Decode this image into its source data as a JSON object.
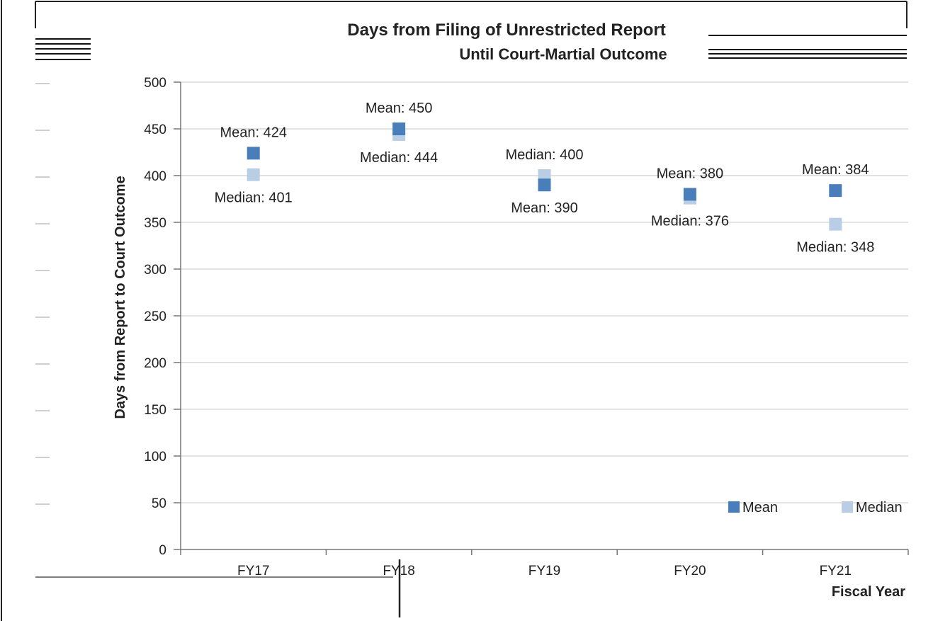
{
  "chart_data": {
    "type": "scatter",
    "title": "Days from Filing of Unrestricted Report",
    "subtitle": "Until Court-Martial Outcome",
    "xlabel": "Fiscal Year",
    "ylabel": "Days from Report to Court Outcome",
    "categories": [
      "FY17",
      "FY18",
      "FY19",
      "FY20",
      "FY21"
    ],
    "ylim": [
      0,
      500
    ],
    "yticks": [
      0,
      50,
      100,
      150,
      200,
      250,
      300,
      350,
      400,
      450,
      500
    ],
    "grid": true,
    "legend_position": "bottom-right",
    "series": [
      {
        "name": "Mean",
        "color": "#4a7ebb",
        "values": [
          424,
          450,
          390,
          380,
          384
        ]
      },
      {
        "name": "Median",
        "color": "#b9cde5",
        "values": [
          401,
          444,
          400,
          376,
          348
        ]
      }
    ],
    "labels": {
      "Mean": [
        "Mean: 424",
        "Mean: 450",
        "Mean: 390",
        "Mean: 380",
        "Mean: 384"
      ],
      "Median": [
        "Median: 401",
        "Median: 444",
        "Median: 400",
        "Median: 376",
        "Median: 348"
      ]
    }
  }
}
